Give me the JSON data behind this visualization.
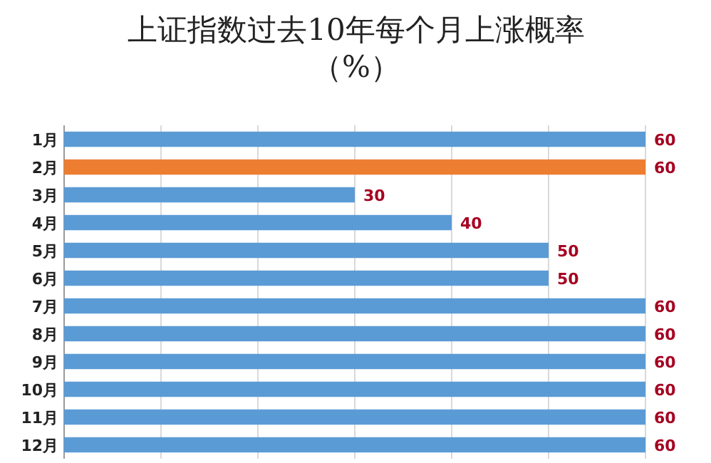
{
  "chart_data": {
    "type": "bar",
    "orientation": "horizontal",
    "title": "上证指数过去10年每个月上涨概率（%）",
    "categories": [
      "1月",
      "2月",
      "3月",
      "4月",
      "5月",
      "6月",
      "7月",
      "8月",
      "9月",
      "10月",
      "11月",
      "12月"
    ],
    "values": [
      60,
      60,
      30,
      40,
      50,
      50,
      60,
      60,
      60,
      60,
      60,
      60
    ],
    "colors": [
      "#5b9bd5",
      "#ed7d31",
      "#5b9bd5",
      "#5b9bd5",
      "#5b9bd5",
      "#5b9bd5",
      "#5b9bd5",
      "#5b9bd5",
      "#5b9bd5",
      "#5b9bd5",
      "#5b9bd5",
      "#5b9bd5"
    ],
    "xlim": [
      0,
      60
    ],
    "xticks": [
      {
        "value": 0,
        "label": null
      },
      {
        "value": 10,
        "label": null
      },
      {
        "value": 20,
        "label": null
      },
      {
        "value": 30,
        "label": null
      },
      {
        "value": 40,
        "label": null
      },
      {
        "value": 50,
        "label": null
      },
      {
        "value": 60,
        "label": null
      }
    ],
    "grid": "x",
    "data_labels": true
  }
}
